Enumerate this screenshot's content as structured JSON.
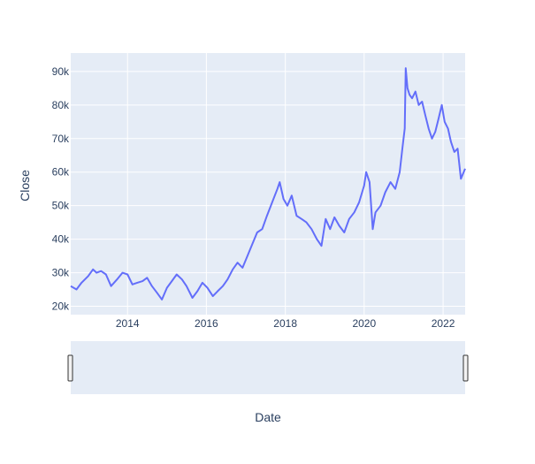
{
  "chart_data": {
    "type": "line",
    "title": "",
    "xlabel": "Date",
    "ylabel": "Close",
    "xlim": [
      "2012-07-24",
      "2022-07-24"
    ],
    "ylim": [
      17500,
      95500
    ],
    "grid": true,
    "legend": "none",
    "x_ticks": [
      "2014",
      "2016",
      "2018",
      "2020",
      "2022"
    ],
    "y_ticks": [
      {
        "value": 20000,
        "label": "20k"
      },
      {
        "value": 30000,
        "label": "30k"
      },
      {
        "value": 40000,
        "label": "40k"
      },
      {
        "value": 50000,
        "label": "50k"
      },
      {
        "value": 60000,
        "label": "60k"
      },
      {
        "value": 70000,
        "label": "70k"
      },
      {
        "value": 80000,
        "label": "80k"
      },
      {
        "value": 90000,
        "label": "90k"
      }
    ],
    "series": [
      {
        "color": "#636efa",
        "x": [
          "2012-07-24",
          "2012-09-15",
          "2012-11-01",
          "2013-01-01",
          "2013-02-15",
          "2013-03-20",
          "2013-05-01",
          "2013-06-15",
          "2013-08-01",
          "2013-09-25",
          "2013-11-15",
          "2014-01-01",
          "2014-02-15",
          "2014-04-01",
          "2014-05-20",
          "2014-07-01",
          "2014-08-15",
          "2014-10-01",
          "2014-11-15",
          "2015-01-01",
          "2015-02-15",
          "2015-04-01",
          "2015-05-20",
          "2015-07-01",
          "2015-08-25",
          "2015-10-10",
          "2015-11-25",
          "2016-01-10",
          "2016-03-01",
          "2016-04-15",
          "2016-06-01",
          "2016-07-15",
          "2016-09-01",
          "2016-10-15",
          "2016-12-01",
          "2017-01-15",
          "2017-03-01",
          "2017-04-15",
          "2017-06-01",
          "2017-07-15",
          "2017-09-01",
          "2017-10-20",
          "2017-11-10",
          "2017-12-15",
          "2018-01-20",
          "2018-03-01",
          "2018-04-15",
          "2018-06-01",
          "2018-07-15",
          "2018-09-01",
          "2018-10-20",
          "2018-12-01",
          "2019-01-10",
          "2019-02-20",
          "2019-04-01",
          "2019-05-15",
          "2019-07-01",
          "2019-08-15",
          "2019-10-01",
          "2019-11-15",
          "2020-01-01",
          "2020-01-20",
          "2020-02-20",
          "2020-03-20",
          "2020-04-15",
          "2020-06-01",
          "2020-07-15",
          "2020-09-01",
          "2020-10-15",
          "2020-11-25",
          "2020-12-20",
          "2021-01-11",
          "2021-01-20",
          "2021-02-05",
          "2021-02-25",
          "2021-03-20",
          "2021-04-20",
          "2021-05-20",
          "2021-06-20",
          "2021-07-20",
          "2021-08-20",
          "2021-09-20",
          "2021-10-20",
          "2021-11-20",
          "2021-12-20",
          "2022-01-15",
          "2022-02-15",
          "2022-03-15",
          "2022-04-15",
          "2022-05-15",
          "2022-06-15",
          "2022-07-24"
        ],
        "y": [
          26000,
          25000,
          27000,
          29000,
          31000,
          30000,
          30500,
          29500,
          26000,
          28000,
          30000,
          29500,
          26500,
          27000,
          27500,
          28500,
          26000,
          24000,
          22000,
          25500,
          27500,
          29500,
          28000,
          26000,
          22500,
          24500,
          27000,
          25500,
          23000,
          24500,
          26000,
          28000,
          31000,
          33000,
          31500,
          35000,
          38500,
          42000,
          43000,
          47000,
          51000,
          55000,
          57000,
          52000,
          50000,
          53000,
          47000,
          46000,
          45000,
          43000,
          40000,
          38000,
          46000,
          43000,
          46500,
          44000,
          42000,
          46000,
          48000,
          51000,
          56000,
          60000,
          57000,
          43000,
          48000,
          50000,
          54000,
          57000,
          55000,
          60000,
          67000,
          73000,
          91000,
          85000,
          83000,
          82000,
          84000,
          80000,
          81000,
          77000,
          73000,
          70000,
          72000,
          76000,
          80000,
          75000,
          73000,
          69000,
          66000,
          67000,
          58000,
          61000
        ]
      }
    ]
  }
}
